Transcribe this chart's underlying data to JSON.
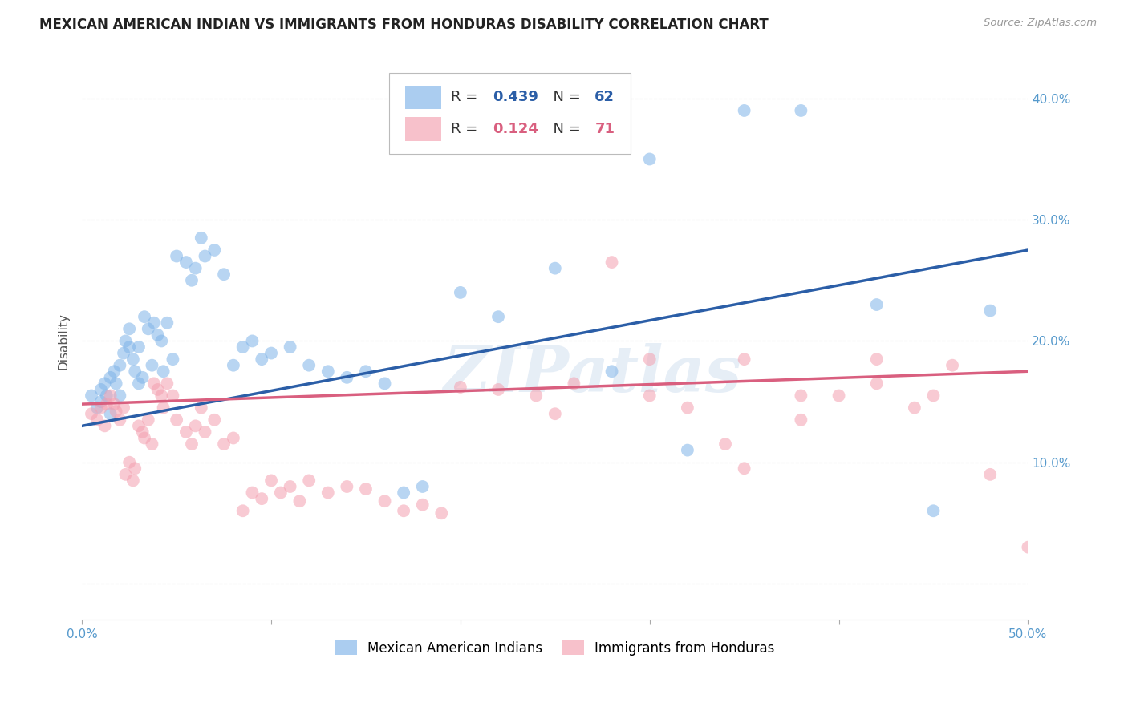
{
  "title": "MEXICAN AMERICAN INDIAN VS IMMIGRANTS FROM HONDURAS DISABILITY CORRELATION CHART",
  "source": "Source: ZipAtlas.com",
  "ylabel": "Disability",
  "xlim": [
    0.0,
    0.5
  ],
  "ylim": [
    -0.03,
    0.43
  ],
  "yticks": [
    0.0,
    0.1,
    0.2,
    0.3,
    0.4
  ],
  "ytick_labels": [
    "",
    "10.0%",
    "20.0%",
    "30.0%",
    "40.0%"
  ],
  "xticks": [
    0.0,
    0.1,
    0.2,
    0.3,
    0.4,
    0.5
  ],
  "xtick_labels": [
    "0.0%",
    "",
    "",
    "",
    "",
    "50.0%"
  ],
  "blue_R": 0.439,
  "blue_N": 62,
  "pink_R": 0.124,
  "pink_N": 71,
  "blue_color": "#7EB3E8",
  "pink_color": "#F4A0B0",
  "blue_line_color": "#2B5EA7",
  "pink_line_color": "#D95F7F",
  "tick_color": "#5599CC",
  "background_color": "#ffffff",
  "watermark": "ZIPatlas",
  "legend_label_blue": "Mexican American Indians",
  "legend_label_pink": "Immigrants from Honduras",
  "blue_scatter_x": [
    0.005,
    0.008,
    0.01,
    0.01,
    0.012,
    0.013,
    0.015,
    0.015,
    0.017,
    0.018,
    0.02,
    0.02,
    0.022,
    0.023,
    0.025,
    0.025,
    0.027,
    0.028,
    0.03,
    0.03,
    0.032,
    0.033,
    0.035,
    0.037,
    0.038,
    0.04,
    0.042,
    0.043,
    0.045,
    0.048,
    0.05,
    0.055,
    0.058,
    0.06,
    0.063,
    0.065,
    0.07,
    0.075,
    0.08,
    0.085,
    0.09,
    0.095,
    0.1,
    0.11,
    0.12,
    0.13,
    0.14,
    0.15,
    0.16,
    0.17,
    0.18,
    0.2,
    0.22,
    0.25,
    0.28,
    0.3,
    0.32,
    0.35,
    0.38,
    0.42,
    0.45,
    0.48
  ],
  "blue_scatter_y": [
    0.155,
    0.145,
    0.16,
    0.15,
    0.165,
    0.155,
    0.17,
    0.14,
    0.175,
    0.165,
    0.18,
    0.155,
    0.19,
    0.2,
    0.195,
    0.21,
    0.185,
    0.175,
    0.165,
    0.195,
    0.17,
    0.22,
    0.21,
    0.18,
    0.215,
    0.205,
    0.2,
    0.175,
    0.215,
    0.185,
    0.27,
    0.265,
    0.25,
    0.26,
    0.285,
    0.27,
    0.275,
    0.255,
    0.18,
    0.195,
    0.2,
    0.185,
    0.19,
    0.195,
    0.18,
    0.175,
    0.17,
    0.175,
    0.165,
    0.075,
    0.08,
    0.24,
    0.22,
    0.26,
    0.175,
    0.35,
    0.11,
    0.39,
    0.39,
    0.23,
    0.06,
    0.225
  ],
  "pink_scatter_x": [
    0.005,
    0.008,
    0.01,
    0.012,
    0.013,
    0.015,
    0.017,
    0.018,
    0.02,
    0.022,
    0.023,
    0.025,
    0.027,
    0.028,
    0.03,
    0.032,
    0.033,
    0.035,
    0.037,
    0.038,
    0.04,
    0.042,
    0.043,
    0.045,
    0.048,
    0.05,
    0.055,
    0.058,
    0.06,
    0.063,
    0.065,
    0.07,
    0.075,
    0.08,
    0.085,
    0.09,
    0.095,
    0.1,
    0.105,
    0.11,
    0.115,
    0.12,
    0.13,
    0.14,
    0.15,
    0.16,
    0.17,
    0.18,
    0.19,
    0.2,
    0.22,
    0.24,
    0.26,
    0.28,
    0.3,
    0.32,
    0.34,
    0.35,
    0.38,
    0.4,
    0.42,
    0.44,
    0.46,
    0.48,
    0.5,
    0.3,
    0.25,
    0.35,
    0.42,
    0.38,
    0.45
  ],
  "pink_scatter_y": [
    0.14,
    0.135,
    0.145,
    0.13,
    0.148,
    0.155,
    0.148,
    0.142,
    0.135,
    0.145,
    0.09,
    0.1,
    0.085,
    0.095,
    0.13,
    0.125,
    0.12,
    0.135,
    0.115,
    0.165,
    0.16,
    0.155,
    0.145,
    0.165,
    0.155,
    0.135,
    0.125,
    0.115,
    0.13,
    0.145,
    0.125,
    0.135,
    0.115,
    0.12,
    0.06,
    0.075,
    0.07,
    0.085,
    0.075,
    0.08,
    0.068,
    0.085,
    0.075,
    0.08,
    0.078,
    0.068,
    0.06,
    0.065,
    0.058,
    0.162,
    0.16,
    0.155,
    0.165,
    0.265,
    0.155,
    0.145,
    0.115,
    0.095,
    0.135,
    0.155,
    0.165,
    0.145,
    0.18,
    0.09,
    0.03,
    0.185,
    0.14,
    0.185,
    0.185,
    0.155,
    0.155
  ],
  "blue_line_x0": 0.0,
  "blue_line_y0": 0.13,
  "blue_line_x1": 0.5,
  "blue_line_y1": 0.275,
  "pink_line_x0": 0.0,
  "pink_line_y0": 0.148,
  "pink_line_x1": 0.5,
  "pink_line_y1": 0.175
}
